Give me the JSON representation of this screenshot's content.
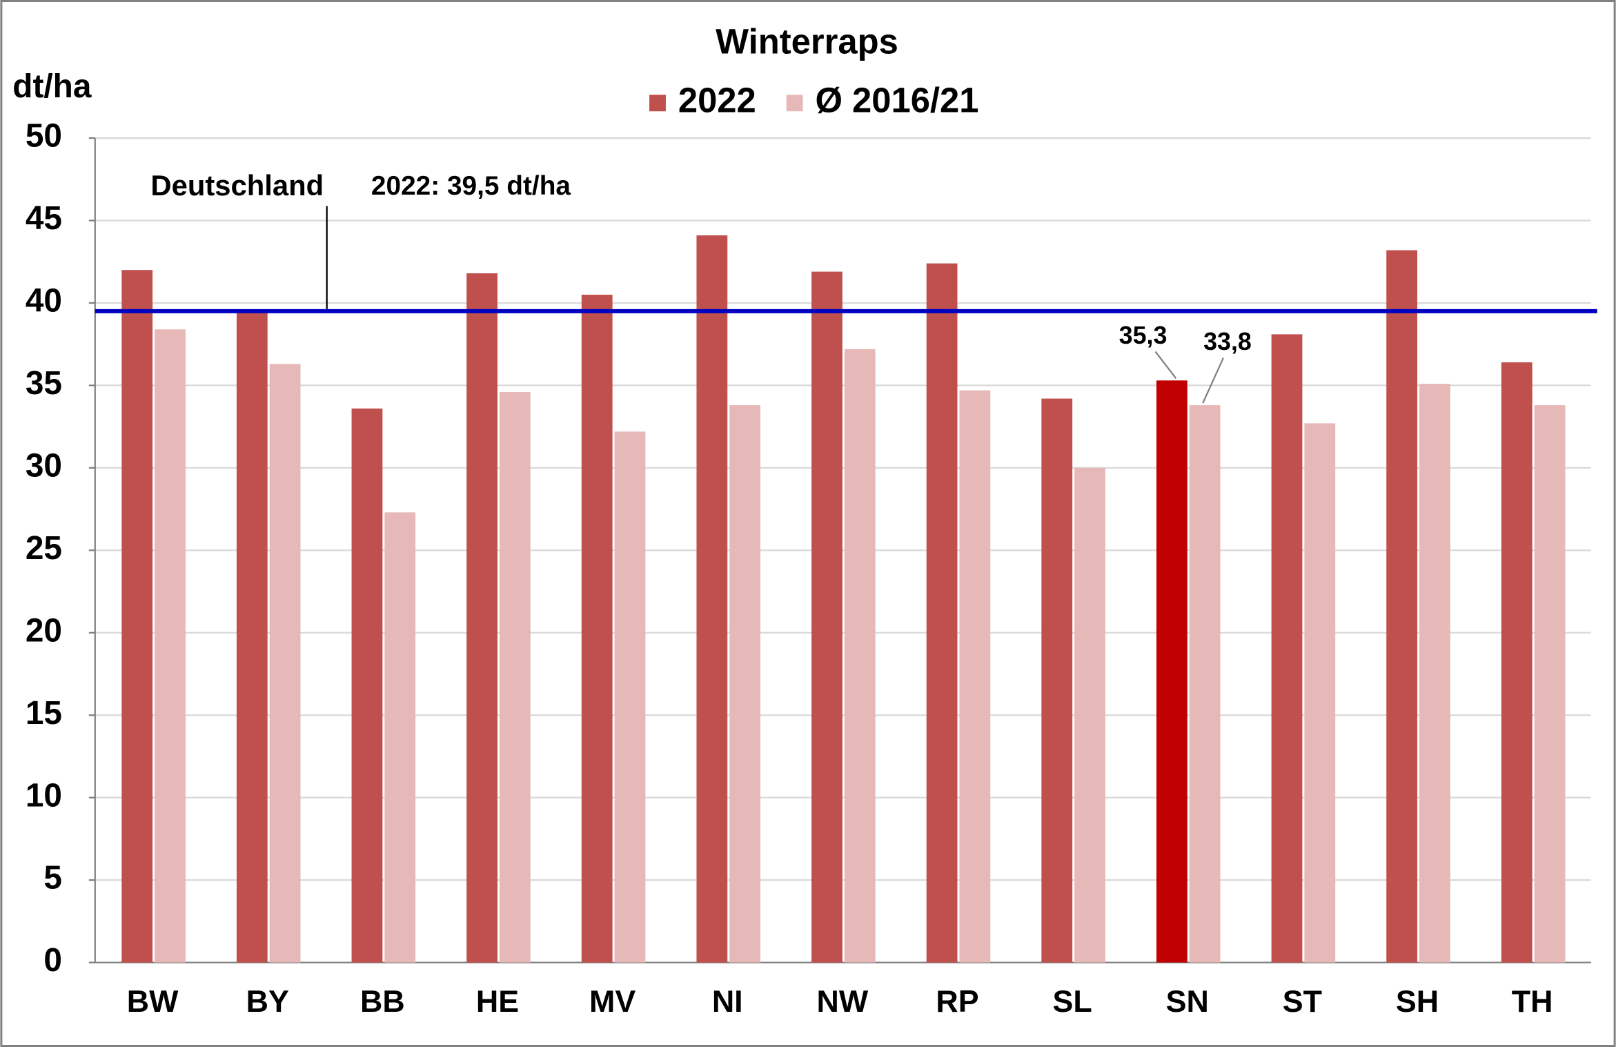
{
  "chart_data": {
    "type": "bar",
    "title": "Winterraps",
    "y_label": "dt/ha",
    "categories": [
      "BW",
      "BY",
      "BB",
      "HE",
      "MV",
      "NI",
      "NW",
      "RP",
      "SL",
      "SN",
      "ST",
      "SH",
      "TH"
    ],
    "series": [
      {
        "name": "2022",
        "color": "#c0504d",
        "colors": [
          "#c0504d",
          "#c0504d",
          "#c0504d",
          "#c0504d",
          "#c0504d",
          "#c0504d",
          "#c0504d",
          "#c0504d",
          "#c0504d",
          "#c00000",
          "#c0504d",
          "#c0504d",
          "#c0504d"
        ],
        "values": [
          42.0,
          39.6,
          33.6,
          41.8,
          40.5,
          44.1,
          41.9,
          42.4,
          34.2,
          35.3,
          38.1,
          43.2,
          36.4
        ],
        "value_labels": [
          null,
          null,
          null,
          null,
          null,
          null,
          null,
          null,
          null,
          "35,3",
          null,
          null,
          null
        ]
      },
      {
        "name": "Ø 2016/21",
        "color": "#e6b9b8",
        "values": [
          38.4,
          36.3,
          27.3,
          34.6,
          32.2,
          33.8,
          37.2,
          34.7,
          30.0,
          33.8,
          32.7,
          35.1,
          33.8
        ],
        "value_labels": [
          null,
          null,
          null,
          null,
          null,
          null,
          null,
          null,
          null,
          "33,8",
          null,
          null,
          null
        ]
      }
    ],
    "reference_line": {
      "label": "Deutschland",
      "value": 39.5,
      "value_label": "2022: 39,5 dt/ha",
      "color": "#0000c0"
    },
    "ylim": [
      0,
      50
    ],
    "yticks": [
      0,
      5,
      10,
      15,
      20,
      25,
      30,
      35,
      40,
      45,
      50
    ],
    "grid": true,
    "legend": "top"
  }
}
